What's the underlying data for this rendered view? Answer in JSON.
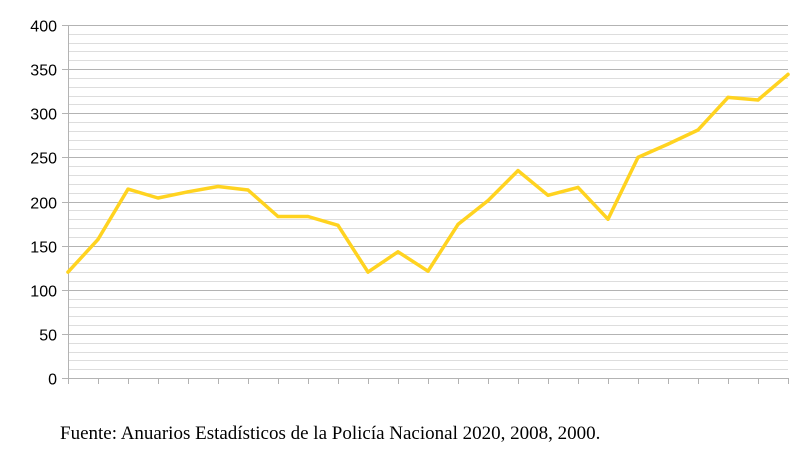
{
  "chart_data": {
    "type": "line",
    "title": "",
    "xlabel": "",
    "ylabel": "",
    "ylim": [
      0,
      400
    ],
    "y_major_ticks": [
      0,
      50,
      100,
      150,
      200,
      250,
      300,
      350,
      400
    ],
    "y_minor_step": 10,
    "grid": true,
    "x_tick_labels_shown": false,
    "line_color": "#ffd320",
    "series": [
      {
        "values": [
          120,
          157,
          214,
          204,
          211,
          217,
          213,
          183,
          183,
          173,
          120,
          143,
          121,
          174,
          201,
          235,
          207,
          216,
          180,
          250,
          265,
          281,
          318,
          315,
          344
        ]
      }
    ]
  },
  "colors": {
    "line": "#ffd320",
    "major_grid": "#b3b3b3",
    "minor_grid": "#dddddd",
    "axis": "#b3b3b3"
  },
  "footer": {
    "source": "Fuente: Anuarios Estadísticos de la Policía Nacional 2020, 2008, 2000."
  }
}
